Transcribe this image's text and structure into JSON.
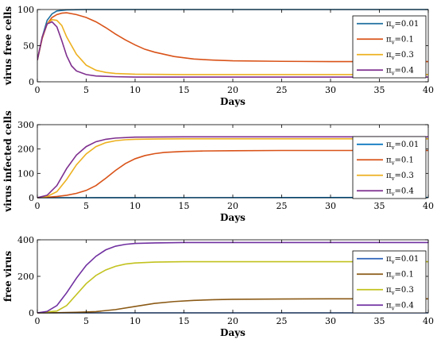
{
  "chart_data": [
    {
      "type": "line",
      "xlabel": "Days",
      "ylabel": "virus free cells",
      "xlim": [
        0,
        40
      ],
      "ylim": [
        0,
        100
      ],
      "xticks": [
        0,
        5,
        10,
        15,
        20,
        25,
        30,
        35,
        40
      ],
      "yticks": [
        0,
        50,
        100
      ],
      "legend_position": "top-right",
      "series": [
        {
          "name": "πv=0.01",
          "legend_prefix": "π",
          "legend_sub": "v",
          "legend_value": "=0.01",
          "color": "#1f6f9f",
          "points": [
            [
              0,
              30
            ],
            [
              0.5,
              62
            ],
            [
              1,
              85
            ],
            [
              1.5,
              94
            ],
            [
              2,
              98
            ],
            [
              3,
              99.5
            ],
            [
              5,
              100
            ],
            [
              40,
              100
            ]
          ]
        },
        {
          "name": "πv=0.1",
          "legend_prefix": "π",
          "legend_sub": "v",
          "legend_value": "=0.1",
          "color": "#d95319",
          "points": [
            [
              0,
              30
            ],
            [
              0.5,
              60
            ],
            [
              1,
              80
            ],
            [
              1.5,
              89
            ],
            [
              2,
              93
            ],
            [
              2.5,
              95
            ],
            [
              3,
              95.5
            ],
            [
              4,
              93
            ],
            [
              5,
              89
            ],
            [
              6,
              83
            ],
            [
              7,
              75
            ],
            [
              8,
              66
            ],
            [
              9,
              58
            ],
            [
              10,
              51
            ],
            [
              11,
              45
            ],
            [
              12,
              41
            ],
            [
              14,
              35
            ],
            [
              16,
              31.5
            ],
            [
              18,
              30
            ],
            [
              20,
              29
            ],
            [
              25,
              28.3
            ],
            [
              30,
              28
            ],
            [
              40,
              28
            ]
          ]
        },
        {
          "name": "πv=0.3",
          "legend_prefix": "π",
          "legend_sub": "v",
          "legend_value": "=0.3",
          "color": "#edb120",
          "points": [
            [
              0,
              30
            ],
            [
              0.5,
              62
            ],
            [
              1,
              80
            ],
            [
              1.5,
              86
            ],
            [
              2,
              85
            ],
            [
              2.5,
              78
            ],
            [
              3,
              62
            ],
            [
              4,
              38
            ],
            [
              5,
              23
            ],
            [
              6,
              16
            ],
            [
              7,
              13
            ],
            [
              8,
              11.5
            ],
            [
              10,
              10.5
            ],
            [
              15,
              10
            ],
            [
              40,
              10
            ]
          ]
        },
        {
          "name": "πv=0.4",
          "legend_prefix": "π",
          "legend_sub": "v",
          "legend_value": "=0.4",
          "color": "#7e2f8e",
          "points": [
            [
              0,
              30
            ],
            [
              0.5,
              62
            ],
            [
              1,
              80
            ],
            [
              1.5,
              83
            ],
            [
              2,
              76
            ],
            [
              2.5,
              57
            ],
            [
              3,
              36
            ],
            [
              3.5,
              22
            ],
            [
              4,
              15
            ],
            [
              5,
              10
            ],
            [
              6,
              8
            ],
            [
              8,
              7
            ],
            [
              10,
              6.5
            ],
            [
              40,
              6.5
            ]
          ]
        }
      ]
    },
    {
      "type": "line",
      "xlabel": "Days",
      "ylabel": "virus infected cells",
      "xlim": [
        0,
        40
      ],
      "ylim": [
        0,
        300
      ],
      "xticks": [
        0,
        5,
        10,
        15,
        20,
        25,
        30,
        35,
        40
      ],
      "yticks": [
        0,
        100,
        200,
        300
      ],
      "legend_position": "bottom-right",
      "series": [
        {
          "name": "πv=0.01",
          "legend_prefix": "π",
          "legend_sub": "v",
          "legend_value": "=0.01",
          "color": "#0072bd",
          "points": [
            [
              0,
              0
            ],
            [
              40,
              1
            ]
          ]
        },
        {
          "name": "πv=0.1",
          "legend_prefix": "π",
          "legend_sub": "v",
          "legend_value": "=0.1",
          "color": "#d95319",
          "points": [
            [
              0,
              0
            ],
            [
              1,
              2
            ],
            [
              2,
              5
            ],
            [
              3,
              10
            ],
            [
              4,
              18
            ],
            [
              5,
              30
            ],
            [
              6,
              50
            ],
            [
              7,
              80
            ],
            [
              8,
              112
            ],
            [
              9,
              140
            ],
            [
              10,
              160
            ],
            [
              11,
              173
            ],
            [
              12,
              181
            ],
            [
              13,
              186
            ],
            [
              15,
              190
            ],
            [
              17,
              192
            ],
            [
              20,
              193
            ],
            [
              25,
              194
            ],
            [
              30,
              194
            ],
            [
              40,
              194
            ]
          ]
        },
        {
          "name": "πv=0.3",
          "legend_prefix": "π",
          "legend_sub": "v",
          "legend_value": "=0.3",
          "color": "#edb120",
          "points": [
            [
              0,
              0
            ],
            [
              1,
              5
            ],
            [
              2,
              25
            ],
            [
              3,
              75
            ],
            [
              4,
              135
            ],
            [
              5,
              180
            ],
            [
              6,
              210
            ],
            [
              7,
              226
            ],
            [
              8,
              234
            ],
            [
              9,
              238
            ],
            [
              10,
              240
            ],
            [
              12,
              241
            ],
            [
              15,
              242
            ],
            [
              40,
              242
            ]
          ]
        },
        {
          "name": "πv=0.4",
          "legend_prefix": "π",
          "legend_sub": "v",
          "legend_value": "=0.4",
          "color": "#7e2f8e",
          "points": [
            [
              0,
              0
            ],
            [
              1,
              10
            ],
            [
              2,
              50
            ],
            [
              3,
              120
            ],
            [
              4,
              175
            ],
            [
              5,
              210
            ],
            [
              6,
              230
            ],
            [
              7,
              240
            ],
            [
              8,
              245
            ],
            [
              10,
              249
            ],
            [
              15,
              250
            ],
            [
              40,
              250
            ]
          ]
        }
      ]
    },
    {
      "type": "line",
      "xlabel": "Days",
      "ylabel": "free virus",
      "xlim": [
        0,
        40
      ],
      "ylim": [
        0,
        400
      ],
      "xticks": [
        0,
        5,
        10,
        15,
        20,
        25,
        30,
        35,
        40
      ],
      "yticks": [
        0,
        200,
        400
      ],
      "legend_position": "bottom-right",
      "series": [
        {
          "name": "πv=0.01",
          "legend_prefix": "π",
          "legend_sub": "v",
          "legend_value": "=0.01",
          "color": "#2d62b8",
          "points": [
            [
              0,
              0
            ],
            [
              40,
              0
            ]
          ]
        },
        {
          "name": "πv=0.1",
          "legend_prefix": "π",
          "legend_sub": "v",
          "legend_value": "=0.1",
          "color": "#8b5a16",
          "points": [
            [
              0,
              0
            ],
            [
              2,
              1
            ],
            [
              4,
              3
            ],
            [
              6,
              7
            ],
            [
              8,
              18
            ],
            [
              10,
              35
            ],
            [
              12,
              52
            ],
            [
              14,
              62
            ],
            [
              16,
              68
            ],
            [
              18,
              72
            ],
            [
              20,
              74
            ],
            [
              25,
              76
            ],
            [
              30,
              77
            ],
            [
              40,
              77
            ]
          ]
        },
        {
          "name": "πv=0.3",
          "legend_prefix": "π",
          "legend_sub": "v",
          "legend_value": "=0.3",
          "color": "#c2c21f",
          "points": [
            [
              0,
              0
            ],
            [
              2,
              10
            ],
            [
              3,
              40
            ],
            [
              4,
              100
            ],
            [
              5,
              160
            ],
            [
              6,
              205
            ],
            [
              7,
              235
            ],
            [
              8,
              255
            ],
            [
              9,
              267
            ],
            [
              10,
              273
            ],
            [
              12,
              278
            ],
            [
              15,
              280
            ],
            [
              40,
              280
            ]
          ]
        },
        {
          "name": "πv=0.4",
          "legend_prefix": "π",
          "legend_sub": "v",
          "legend_value": "=0.4",
          "color": "#7030a0",
          "points": [
            [
              0,
              0
            ],
            [
              1,
              8
            ],
            [
              2,
              40
            ],
            [
              3,
              110
            ],
            [
              4,
              190
            ],
            [
              5,
              260
            ],
            [
              6,
              310
            ],
            [
              7,
              345
            ],
            [
              8,
              365
            ],
            [
              9,
              375
            ],
            [
              10,
              380
            ],
            [
              12,
              383
            ],
            [
              15,
              385
            ],
            [
              40,
              385
            ]
          ]
        }
      ]
    }
  ]
}
